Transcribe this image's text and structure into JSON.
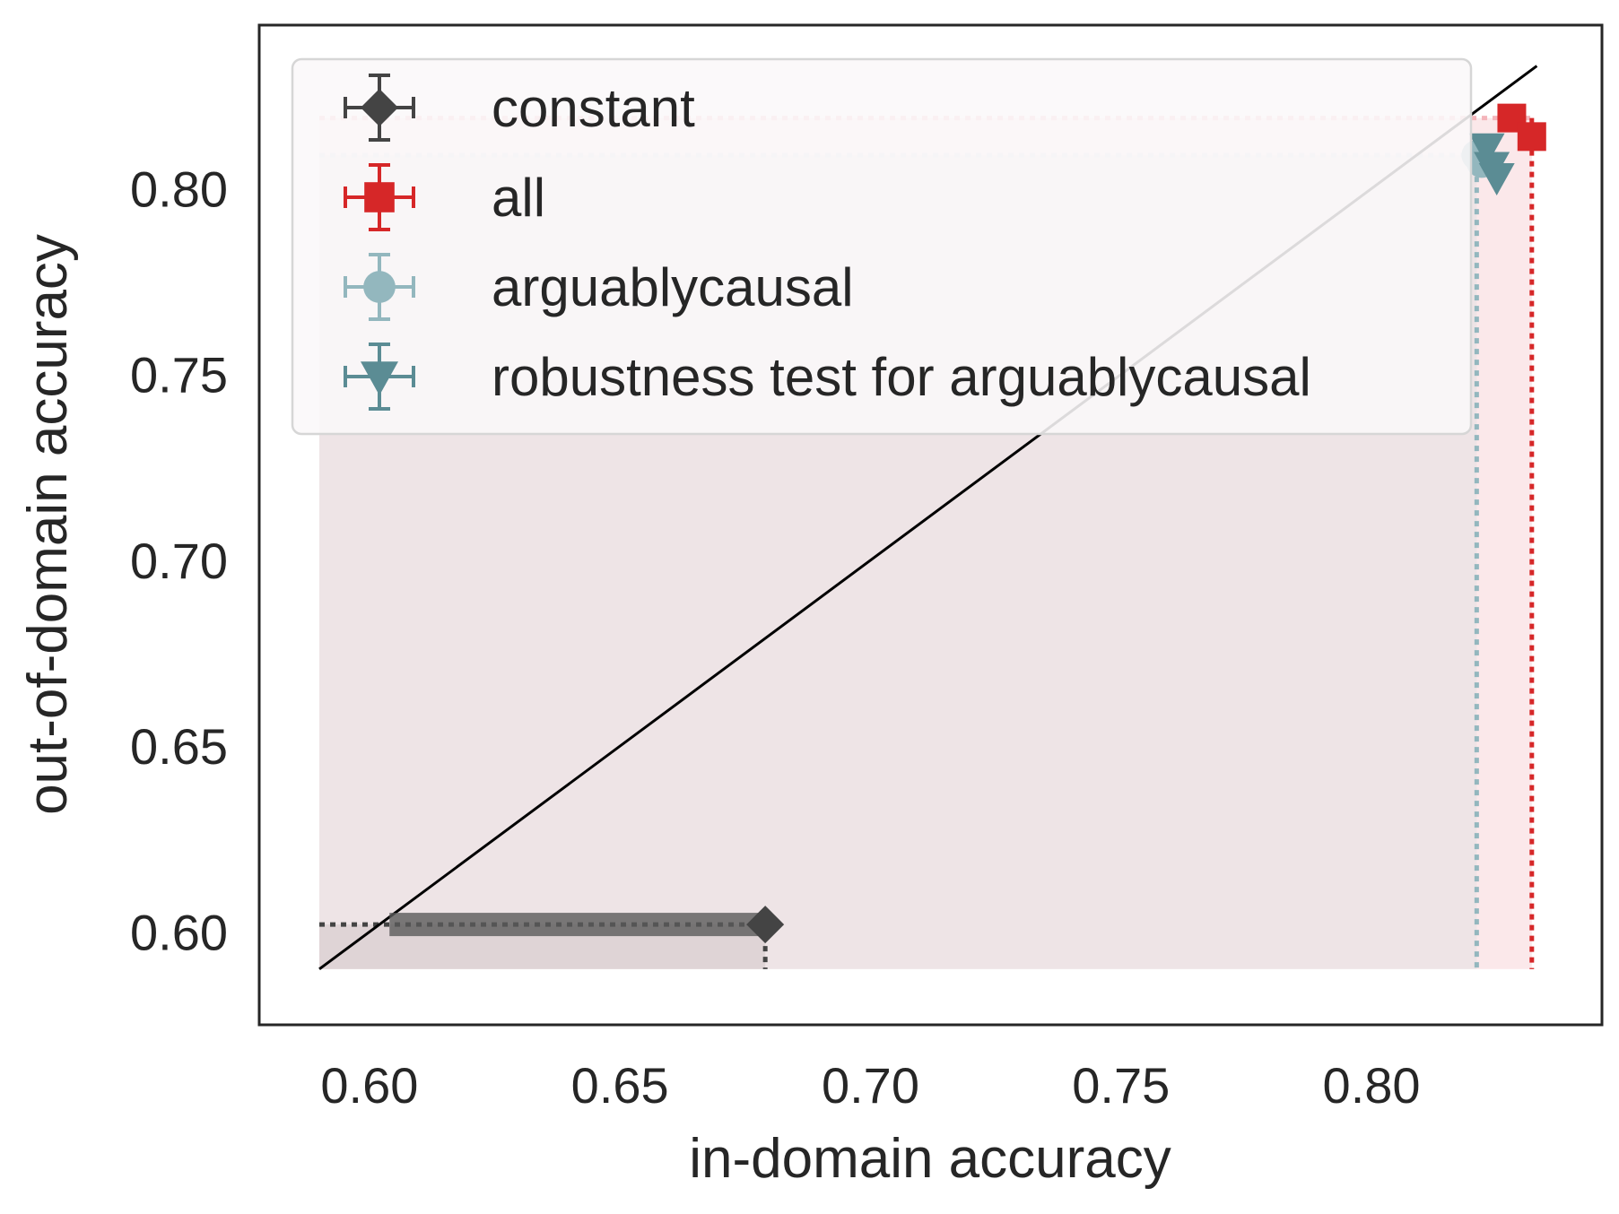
{
  "chart_data": {
    "type": "scatter",
    "title": "",
    "xlabel": "in-domain accuracy",
    "ylabel": "out-of-domain accuracy",
    "xlim": [
      0.578,
      0.846
    ],
    "ylim": [
      0.575,
      0.844
    ],
    "xticks": [
      0.6,
      0.65,
      0.7,
      0.75,
      0.8
    ],
    "yticks": [
      0.6,
      0.65,
      0.7,
      0.75,
      0.8
    ],
    "xtick_labels": [
      "0.60",
      "0.65",
      "0.70",
      "0.75",
      "0.80"
    ],
    "ytick_labels": [
      "0.60",
      "0.65",
      "0.70",
      "0.75",
      "0.80"
    ],
    "grid": false,
    "legend_position": "upper-left",
    "diagonal_reference_line": {
      "from": [
        0.59,
        0.59
      ],
      "to": [
        0.833,
        0.833
      ],
      "color": "#000000"
    },
    "series": [
      {
        "name": "constant",
        "marker": "diamond",
        "color": "#444444",
        "points": [
          {
            "x": 0.679,
            "y": 0.602,
            "xerr_low": 0.075,
            "xerr_high": 0.0
          }
        ]
      },
      {
        "name": "all",
        "marker": "square",
        "color": "#d62728",
        "points": [
          {
            "x": 0.828,
            "y": 0.819
          },
          {
            "x": 0.832,
            "y": 0.814
          }
        ]
      },
      {
        "name": "arguablycausal",
        "marker": "circle",
        "color": "#93b7be",
        "points": [
          {
            "x": 0.821,
            "y": 0.809
          },
          {
            "x": 0.822,
            "y": 0.807
          }
        ]
      },
      {
        "name": "robustness test for arguablycausal",
        "marker": "triangle-down",
        "color": "#5b8c94",
        "points": [
          {
            "x": 0.823,
            "y": 0.811
          },
          {
            "x": 0.824,
            "y": 0.806
          },
          {
            "x": 0.825,
            "y": 0.803
          }
        ]
      }
    ],
    "frontier_region": {
      "x0": 0.59,
      "y0": 0.59,
      "all_x": 0.832,
      "all_y": 0.819,
      "arguablycausal_x": 0.821,
      "arguablycausal_y": 0.809,
      "constant_x": 0.679,
      "constant_y": 0.602
    }
  }
}
